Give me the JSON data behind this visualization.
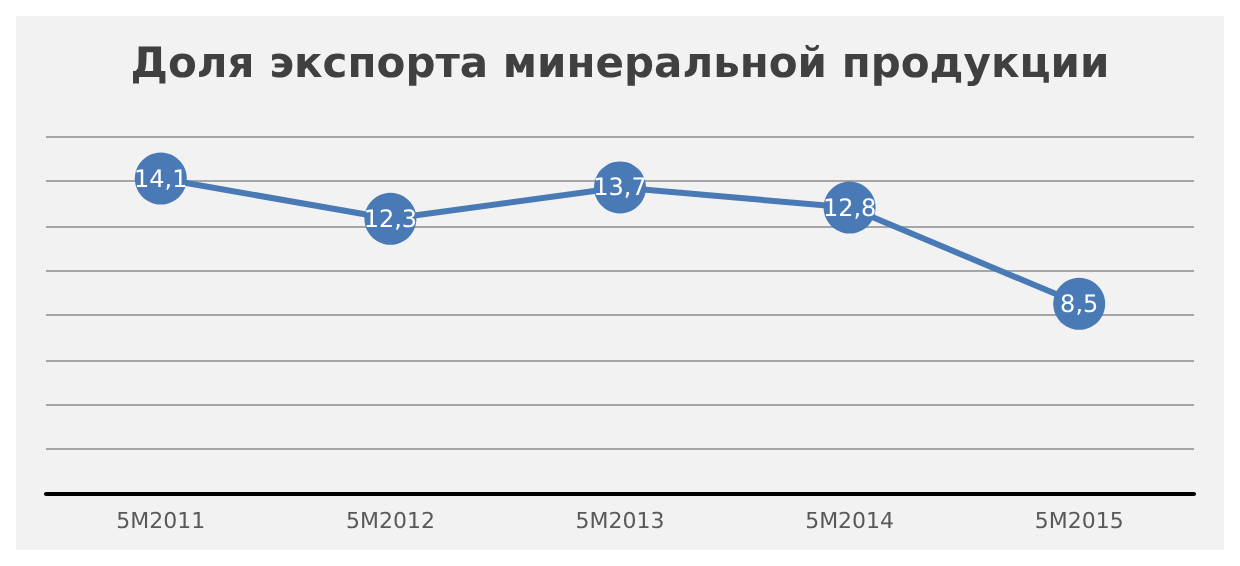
{
  "chart_data": {
    "type": "line",
    "title": "Доля экспорта минеральной продукции",
    "categories": [
      "5M2011",
      "5M2012",
      "5M2013",
      "5M2014",
      "5M2015"
    ],
    "series": [
      {
        "color": "#4a7ab5",
        "values": [
          14.1,
          12.3,
          13.7,
          12.8,
          8.5
        ],
        "value_labels": [
          "14,1",
          "12,3",
          "13,7",
          "12,8",
          "8,5"
        ]
      }
    ],
    "ylim": [
      0,
      16
    ],
    "yticks": [
      {
        "value": 0,
        "label": null
      },
      {
        "value": 2,
        "label": null
      },
      {
        "value": 4,
        "label": null
      },
      {
        "value": 6,
        "label": null
      },
      {
        "value": 8,
        "label": null
      },
      {
        "value": 10,
        "label": null
      },
      {
        "value": 12,
        "label": null
      },
      {
        "value": 14,
        "label": null
      },
      {
        "value": 16,
        "label": null
      }
    ],
    "tick_labels": "x",
    "grid": "y",
    "marker": "circle",
    "line_style": "solid"
  }
}
